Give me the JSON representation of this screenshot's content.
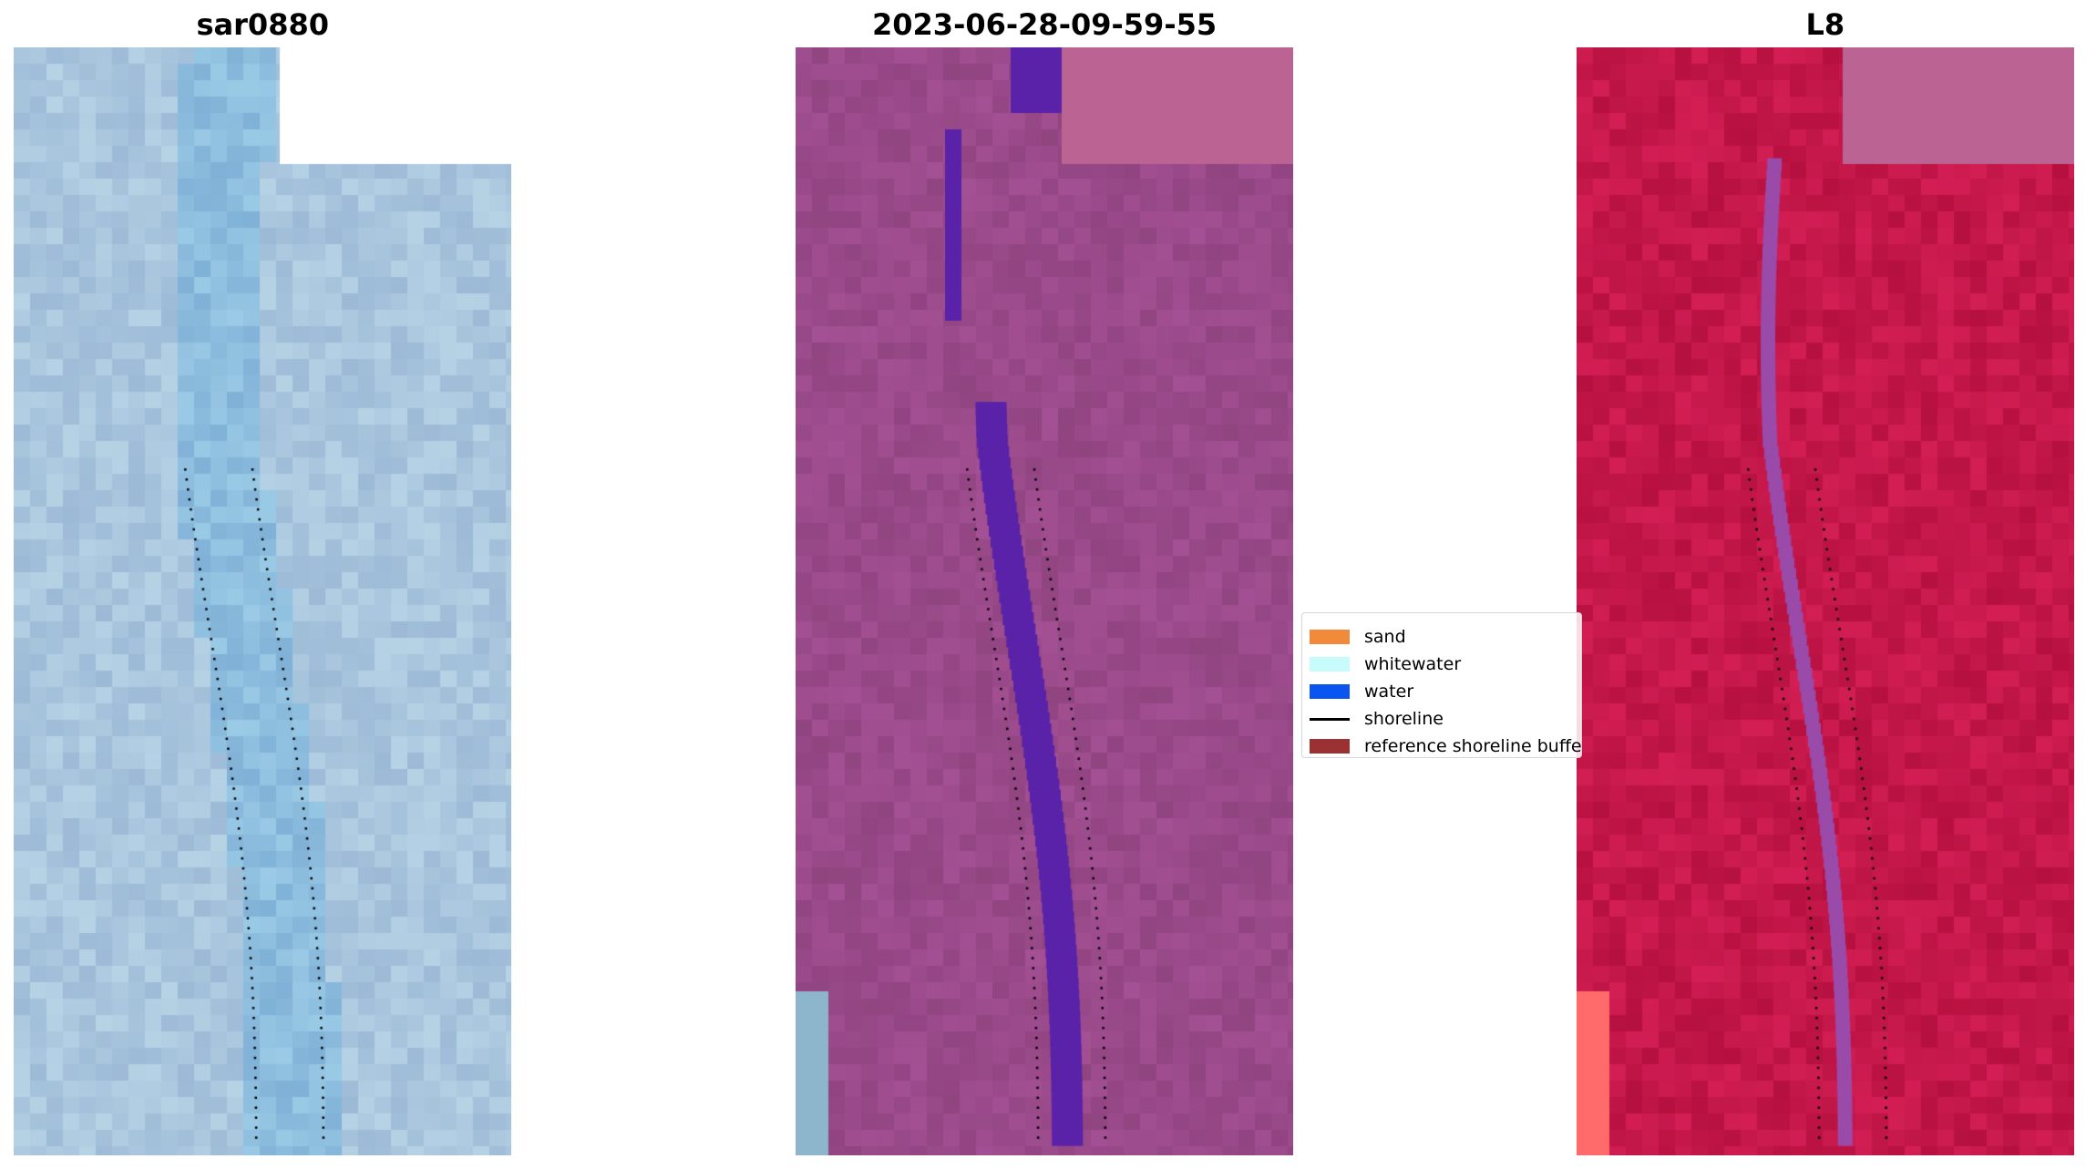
{
  "panels": [
    {
      "title": "sar0880",
      "style": "sar"
    },
    {
      "title": "2023-06-28-09-59-55",
      "style": "classified"
    },
    {
      "title": "L8",
      "style": "falsecolor"
    }
  ],
  "legend": {
    "items": [
      {
        "label": "sand",
        "color": "#f28a3c",
        "kind": "patch"
      },
      {
        "label": "whitewater",
        "color": "#c8fbfb",
        "kind": "patch"
      },
      {
        "label": "water",
        "color": "#0a55f0",
        "kind": "patch"
      },
      {
        "label": "shoreline",
        "color": "#000000",
        "kind": "line"
      },
      {
        "label": "reference shoreline buffer",
        "color": "#9b3132",
        "kind": "patch"
      }
    ]
  },
  "colors": {
    "sar_base": "#b8c6de",
    "classified_base": "#9a4a8a",
    "classified_water": "#5a22a8",
    "nodata_pink": "#bb6393",
    "falsecolor_base": "#c4174a",
    "shoreline_dots": "#000000"
  }
}
